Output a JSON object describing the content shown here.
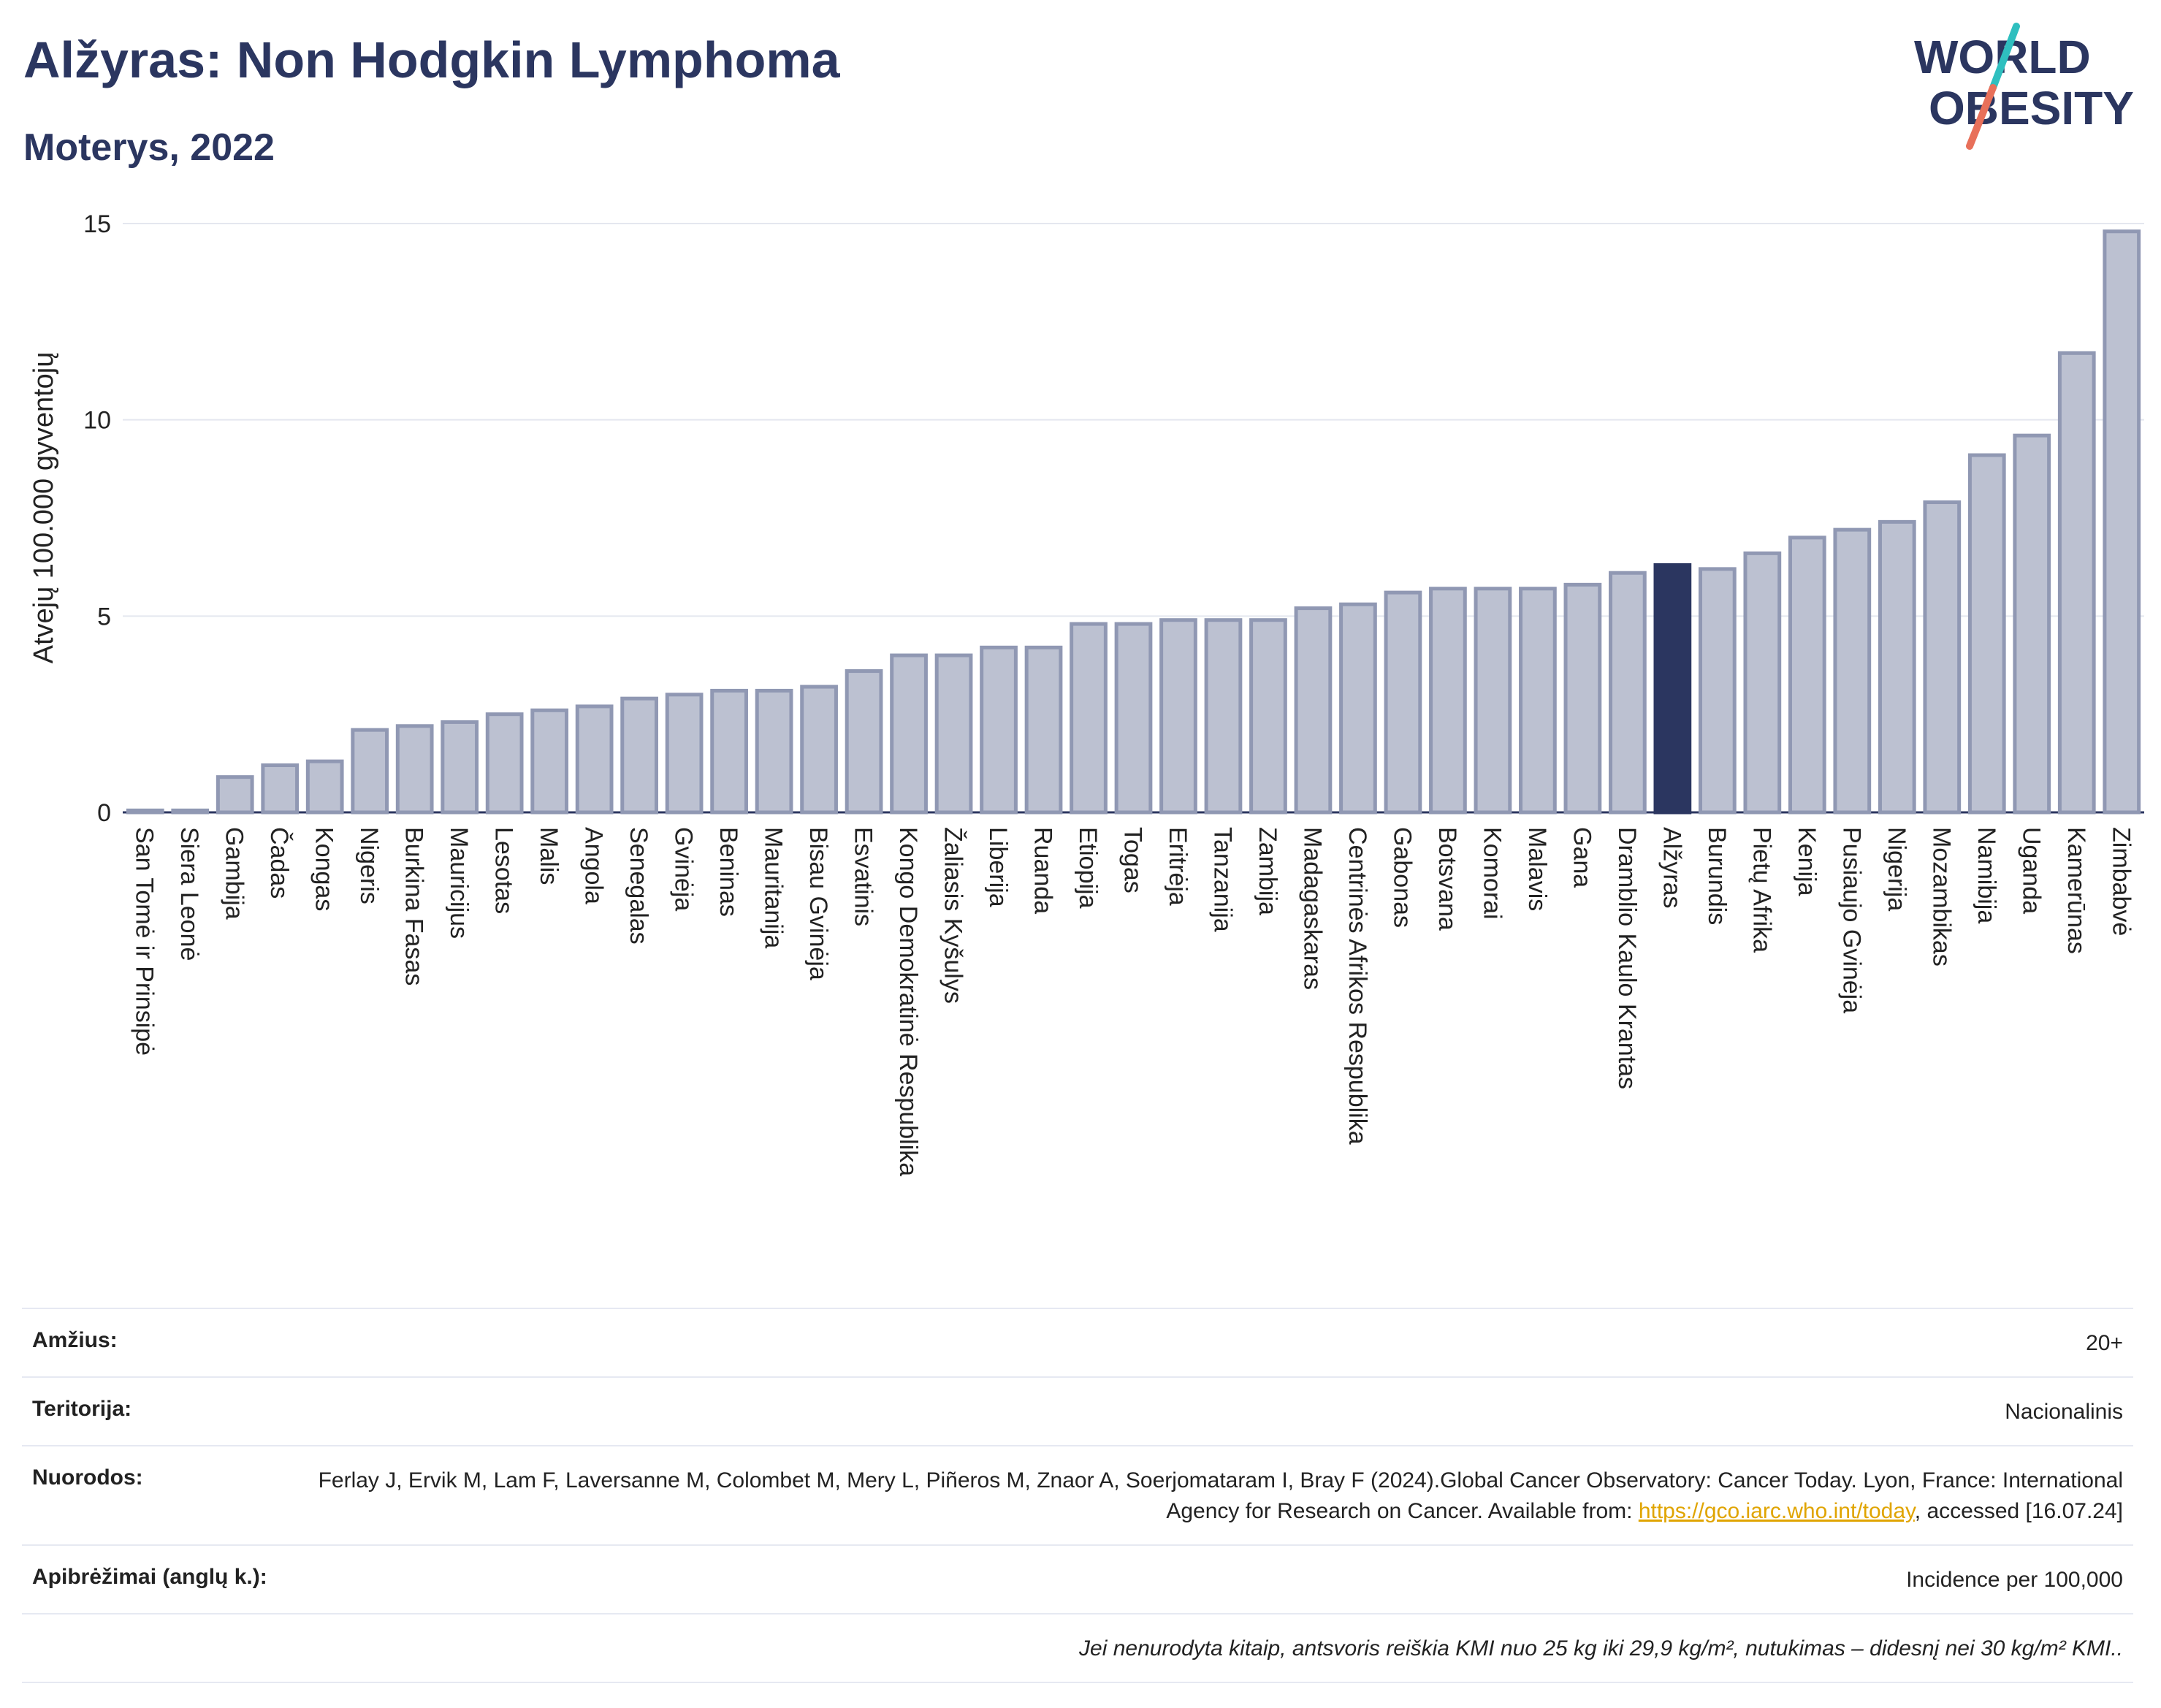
{
  "header": {
    "title": "Alžyras: Non Hodgkin Lymphoma",
    "subtitle": "Moterys, 2022"
  },
  "logo": {
    "line1": "WORLD",
    "line2": "OBESITY"
  },
  "chart_data": {
    "type": "bar",
    "ylabel": "Atvejų 100.000 gyventojų",
    "xlabel": "",
    "ylim": [
      0,
      15
    ],
    "yticks": [
      0,
      5,
      10,
      15
    ],
    "highlight": "Alžyras",
    "colors": {
      "bar": "#bcc1d1",
      "bar_border": "#9098b3",
      "highlight": "#2b3660"
    },
    "categories": [
      "San Tomė ir Prinsipė",
      "Siera Leonė",
      "Gambija",
      "Čadas",
      "Kongas",
      "Nigeris",
      "Burkina Fasas",
      "Mauricijus",
      "Lesotas",
      "Malis",
      "Angola",
      "Senegalas",
      "Gvinėja",
      "Beninas",
      "Mauritanija",
      "Bisau Gvinėja",
      "Esvatinis",
      "Kongo Demokratinė Respublika",
      "Žaliasis Kyšulys",
      "Liberija",
      "Ruanda",
      "Etiopija",
      "Togas",
      "Eritrėja",
      "Tanzanija",
      "Zambija",
      "Madagaskaras",
      "Centrinės Afrikos Respublika",
      "Gabonas",
      "Botsvana",
      "Komorai",
      "Malavis",
      "Gana",
      "Dramblio Kaulo Krantas",
      "Alžyras",
      "Burundis",
      "Pietų Afrika",
      "Kenija",
      "Pusiaujo Gvinėja",
      "Nigerija",
      "Mozambikas",
      "Namibija",
      "Uganda",
      "Kamerūnas",
      "Zimbabvė"
    ],
    "values": [
      0.05,
      0.05,
      0.9,
      1.2,
      1.3,
      2.1,
      2.2,
      2.3,
      2.5,
      2.6,
      2.7,
      2.9,
      3.0,
      3.1,
      3.1,
      3.2,
      3.6,
      4.0,
      4.0,
      4.2,
      4.2,
      4.8,
      4.8,
      4.9,
      4.9,
      4.9,
      5.2,
      5.3,
      5.6,
      5.7,
      5.7,
      5.7,
      5.8,
      6.1,
      6.3,
      6.2,
      6.6,
      7.0,
      7.2,
      7.4,
      7.9,
      9.1,
      9.6,
      11.7,
      14.8
    ]
  },
  "info": {
    "age_label": "Amžius:",
    "age_value": "20+",
    "territory_label": "Teritorija:",
    "territory_value": "Nacionalinis",
    "refs_label": "Nuorodos:",
    "refs_text1": "Ferlay J, Ervik M, Lam F, Laversanne M, Colombet M, Mery L, Piñeros M, Znaor A, Soerjomataram I, Bray F (2024).Global Cancer Observatory: Cancer Today. Lyon, France: International Agency for Research on Cancer. Available from: ",
    "refs_link": "https://gco.iarc.who.int/today",
    "refs_text2": ", accessed [16.07.24]",
    "definitions_label": "Apibrėžimai (anglų k.):",
    "definitions_value": "Incidence per 100,000",
    "note": "Jei nenurodyta kitaip, antsvoris reiškia KMI nuo 25 kg iki 29,9 kg/m², nutukimas – didesnį nei 30 kg/m² KMI.."
  }
}
